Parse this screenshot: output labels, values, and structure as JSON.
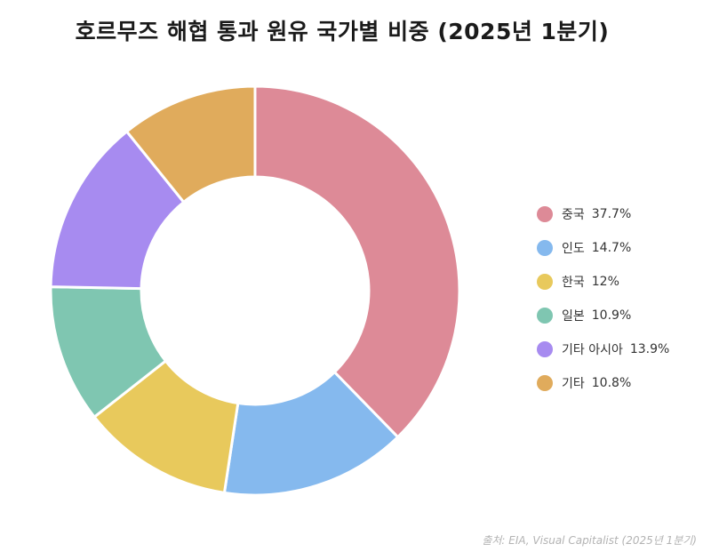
{
  "title": "호르무즈 해협 통과 원유 국가별 비중 (2025년 1분기)",
  "source": "출처: EIA, Visual Capitalist (2025년 1분기)",
  "chart_data": {
    "type": "pie",
    "donut": true,
    "title": "호르무즈 해협 통과 원유 국가별 비중 (2025년 1분기)",
    "categories": [
      "중국",
      "인도",
      "한국",
      "일본",
      "기타 아시아",
      "기타"
    ],
    "values": [
      37.7,
      14.7,
      12,
      10.9,
      13.9,
      10.8
    ],
    "value_labels": [
      "37.7%",
      "14.7%",
      "12%",
      "10.9%",
      "13.9%",
      "10.8%"
    ],
    "colors": [
      "#dd8a97",
      "#85b9ee",
      "#e8c95c",
      "#7fc6b1",
      "#a78bf0",
      "#e0ab5c"
    ],
    "legend_position": "right"
  }
}
